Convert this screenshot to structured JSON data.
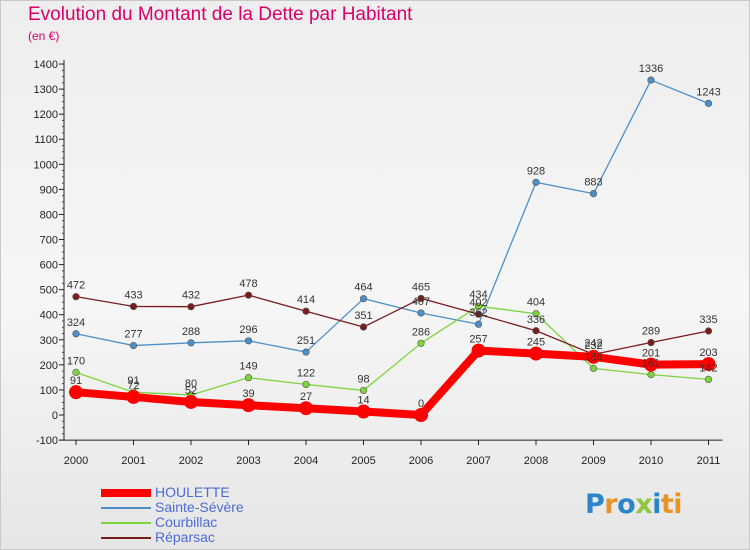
{
  "header": {
    "title": "Evolution du Montant de la Dette par Habitant",
    "unit": "(en €)"
  },
  "logo": {
    "text": "Proxiti",
    "letters": [
      "P",
      "r",
      "o",
      "x",
      "i",
      "ti"
    ]
  },
  "chart_data": {
    "type": "line",
    "title": "Evolution du Montant de la Dette par Habitant",
    "subtitle": "(en €)",
    "xlabel": "",
    "ylabel": "",
    "x": [
      "2000",
      "2001",
      "2002",
      "2003",
      "2004",
      "2005",
      "2006",
      "2007",
      "2008",
      "2009",
      "2010",
      "2011"
    ],
    "ylim": [
      -100,
      1400
    ],
    "yticks": [
      -100,
      0,
      100,
      200,
      300,
      400,
      500,
      600,
      700,
      800,
      900,
      1000,
      1100,
      1200,
      1300,
      1400
    ],
    "grid": false,
    "legend_position": "bottom-left",
    "series": [
      {
        "name": "HOULETTE",
        "color": "#ff0000",
        "emphasized": true,
        "values": [
          91,
          72,
          52,
          39,
          27,
          14,
          0,
          257,
          245,
          232,
          201,
          203
        ]
      },
      {
        "name": "Sainte-Sévère",
        "color": "#4d8fc8",
        "values": [
          324,
          277,
          288,
          296,
          251,
          464,
          407,
          362,
          928,
          883,
          1336,
          1243
        ]
      },
      {
        "name": "Courbillac",
        "color": "#7ed43e",
        "values": [
          170,
          91,
          80,
          149,
          122,
          98,
          286,
          434,
          404,
          186,
          161,
          142
        ]
      },
      {
        "name": "Réparsac",
        "color": "#7a1c1c",
        "values": [
          472,
          433,
          432,
          478,
          414,
          351,
          465,
          402,
          336,
          242,
          289,
          335
        ]
      }
    ]
  }
}
